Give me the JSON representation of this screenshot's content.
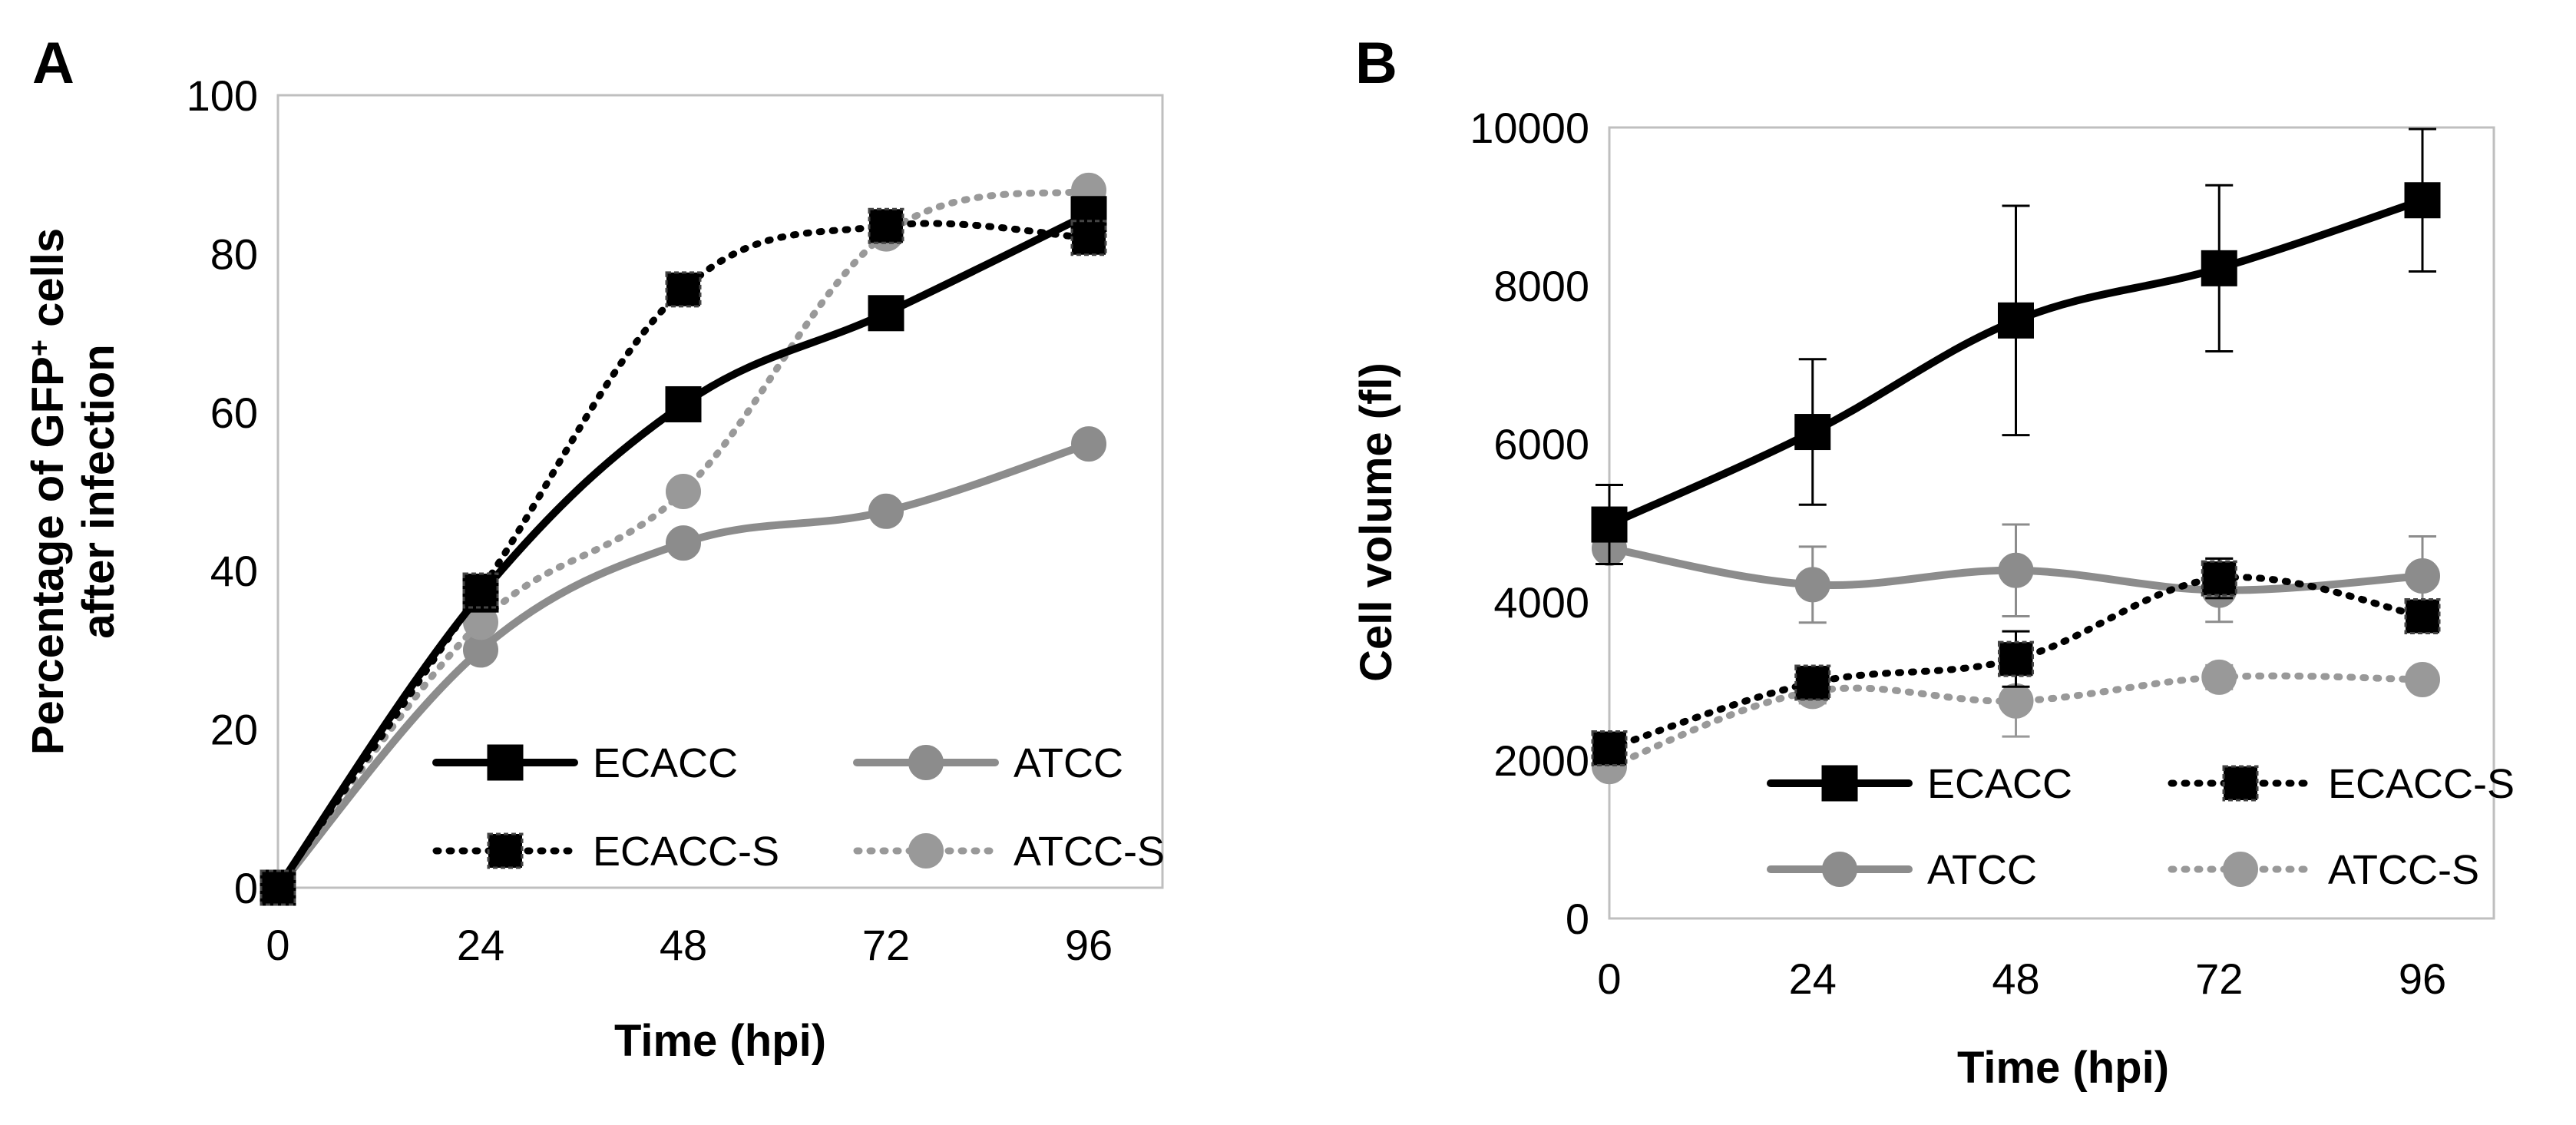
{
  "figure": {
    "background": "#ffffff"
  },
  "chart_data": [
    {
      "panel": "A",
      "type": "line",
      "title": "",
      "xlabel": "Time (hpi)",
      "ylabel_line1": "Percentage of GFP",
      "ylabel_sup": "+",
      "ylabel_line1_end": " cells",
      "ylabel_line2": "after infection",
      "x": [
        0,
        24,
        48,
        72,
        96
      ],
      "x_ticks": [
        "0",
        "24",
        "48",
        "72",
        "96"
      ],
      "y_ticks": [
        "0",
        "20",
        "40",
        "60",
        "80",
        "100"
      ],
      "xlim": [
        0,
        96
      ],
      "ylim": [
        0,
        100
      ],
      "legend_position": "lower-right",
      "series": [
        {
          "name": "ECACC",
          "values": [
            0,
            37,
            61,
            72.5,
            85
          ],
          "color": "#000000",
          "style": "solid",
          "marker": "square"
        },
        {
          "name": "ATCC",
          "values": [
            0,
            30,
            43.5,
            47.5,
            56
          ],
          "color": "#8c8c8c",
          "style": "solid",
          "marker": "circle"
        },
        {
          "name": "ECACC-S",
          "values": [
            0,
            37.5,
            75.5,
            83.5,
            82
          ],
          "color": "#000000",
          "style": "dotted",
          "marker": "square"
        },
        {
          "name": "ATCC-S",
          "values": [
            0,
            33.5,
            50,
            82.5,
            88
          ],
          "color": "#999999",
          "style": "dotted",
          "marker": "circle"
        }
      ]
    },
    {
      "panel": "B",
      "type": "line",
      "title": "",
      "xlabel": "Time (hpi)",
      "ylabel": "Cell volume (fl)",
      "x": [
        0,
        24,
        48,
        72,
        96
      ],
      "x_ticks": [
        "0",
        "24",
        "48",
        "72",
        "96"
      ],
      "y_ticks": [
        "0",
        "2000",
        "4000",
        "6000",
        "8000",
        "10000"
      ],
      "xlim": [
        0,
        96
      ],
      "ylim": [
        0,
        10000
      ],
      "legend_position": "lower-right",
      "series": [
        {
          "name": "ECACC",
          "values": [
            4980,
            6150,
            7560,
            8220,
            9080
          ],
          "errors": [
            500,
            920,
            1450,
            1050,
            900
          ],
          "color": "#000000",
          "style": "solid",
          "marker": "square"
        },
        {
          "name": "ECACC-S",
          "values": [
            2150,
            2980,
            3280,
            4300,
            3820
          ],
          "errors": [
            150,
            200,
            350,
            250,
            150
          ],
          "color": "#000000",
          "style": "dotted",
          "marker": "square"
        },
        {
          "name": "ATCC",
          "values": [
            4680,
            4220,
            4400,
            4150,
            4330
          ],
          "errors": [
            0,
            480,
            580,
            400,
            500
          ],
          "color": "#8c8c8c",
          "style": "solid",
          "marker": "circle"
        },
        {
          "name": "ATCC-S",
          "values": [
            1920,
            2870,
            2750,
            3050,
            3020
          ],
          "errors": [
            100,
            150,
            450,
            150,
            100
          ],
          "color": "#999999",
          "style": "dotted",
          "marker": "circle"
        }
      ]
    }
  ]
}
